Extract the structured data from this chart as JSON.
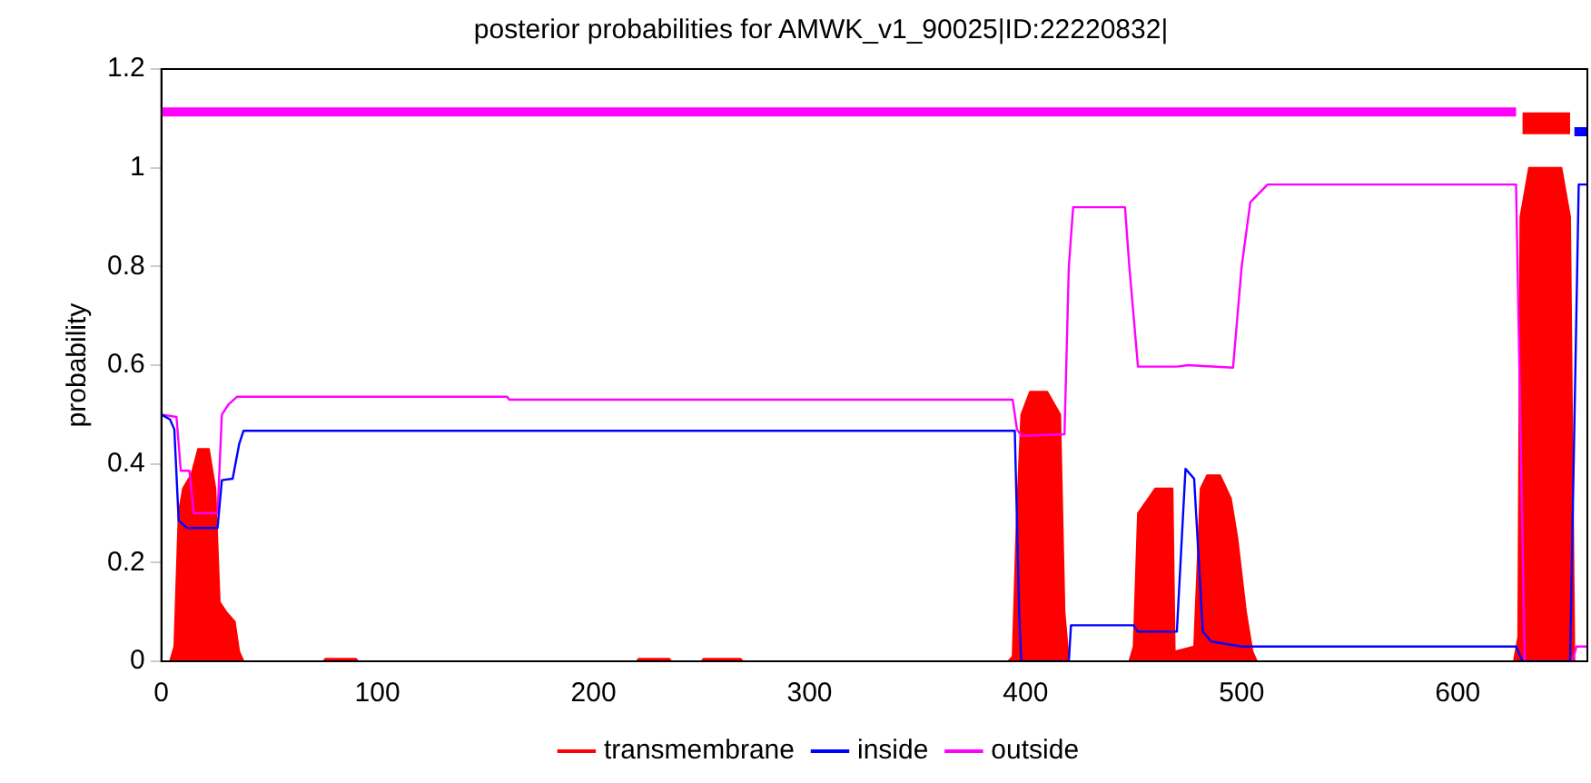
{
  "chart_data": {
    "type": "line",
    "title": "posterior probabilities for AMWK_v1_90025|ID:22220832|",
    "ylabel": "probability",
    "xlim": [
      0,
      660
    ],
    "ylim": [
      0,
      1.2
    ],
    "xticks": [
      0,
      100,
      200,
      300,
      400,
      500,
      600
    ],
    "yticks": [
      0,
      0.2,
      0.4,
      0.6,
      0.8,
      1,
      1.2
    ],
    "grid": false,
    "legend": "bottom",
    "marker": "none",
    "line_style": "solid",
    "series": [
      {
        "name": "transmembrane",
        "type": "area",
        "color": "#ff0000",
        "x": [
          0,
          4,
          6,
          8,
          10,
          14,
          17,
          22,
          25,
          27,
          30,
          34,
          36,
          38,
          75,
          76,
          90,
          91,
          220,
          221,
          235,
          236,
          250,
          251,
          268,
          269,
          392,
          394,
          396,
          398,
          402,
          410,
          416,
          418,
          420,
          448,
          450,
          452,
          460,
          468,
          469,
          478,
          481,
          484,
          490,
          495,
          498,
          502,
          505,
          507,
          626,
          628,
          629,
          633,
          648,
          652,
          654,
          660
        ],
        "values": [
          0,
          0,
          0.03,
          0.3,
          0.35,
          0.38,
          0.43,
          0.43,
          0.35,
          0.12,
          0.1,
          0.08,
          0.02,
          0,
          0,
          0.005,
          0.005,
          0,
          0,
          0.005,
          0.005,
          0,
          0,
          0.005,
          0.005,
          0,
          0,
          0.01,
          0.3,
          0.5,
          0.546,
          0.546,
          0.5,
          0.1,
          0,
          0,
          0.03,
          0.3,
          0.35,
          0.35,
          0.02,
          0.03,
          0.35,
          0.377,
          0.377,
          0.33,
          0.25,
          0.1,
          0.02,
          0,
          0,
          0.05,
          0.9,
          1,
          1,
          0.9,
          0,
          0
        ]
      },
      {
        "name": "inside",
        "color": "#0000ff",
        "x": [
          0,
          4,
          6,
          8,
          12,
          26,
          28,
          33,
          36,
          38,
          395,
          397,
          398,
          420,
          421,
          450,
          452,
          470,
          474,
          478,
          482,
          486,
          500,
          627,
          630,
          652,
          656,
          660
        ],
        "values": [
          0.5,
          0.49,
          0.47,
          0.285,
          0.27,
          0.27,
          0.367,
          0.37,
          0.44,
          0.467,
          0.467,
          0.1,
          0,
          0,
          0.073,
          0.073,
          0.06,
          0.06,
          0.39,
          0.37,
          0.06,
          0.04,
          0.03,
          0.03,
          0,
          0,
          0.966,
          0.966
        ]
      },
      {
        "name": "outside",
        "color": "#ff00ff",
        "x": [
          0,
          7,
          9,
          13,
          15,
          26,
          28,
          31,
          35,
          160,
          161,
          394,
          396,
          398,
          400,
          418,
          420,
          422,
          446,
          448,
          452,
          470,
          475,
          496,
          500,
          504,
          512,
          627,
          631,
          653,
          655,
          660
        ],
        "values": [
          0.5,
          0.495,
          0.386,
          0.386,
          0.3,
          0.3,
          0.5,
          0.52,
          0.536,
          0.536,
          0.53,
          0.53,
          0.47,
          0.457,
          0.457,
          0.46,
          0.8,
          0.92,
          0.92,
          0.8,
          0.597,
          0.597,
          0.6,
          0.595,
          0.8,
          0.93,
          0.966,
          0.966,
          0,
          0,
          0.03,
          0.03
        ]
      },
      {
        "color": "#ff00ff",
        "x": [
          0,
          627
        ],
        "values": [
          1.113,
          1.113
        ]
      },
      {
        "color": "#ff0000",
        "x": [
          630,
          652
        ],
        "values": [
          1.09,
          1.09
        ]
      },
      {
        "color": "#0000ff",
        "x": [
          654,
          660
        ],
        "values": [
          1.073,
          1.073
        ]
      }
    ]
  }
}
